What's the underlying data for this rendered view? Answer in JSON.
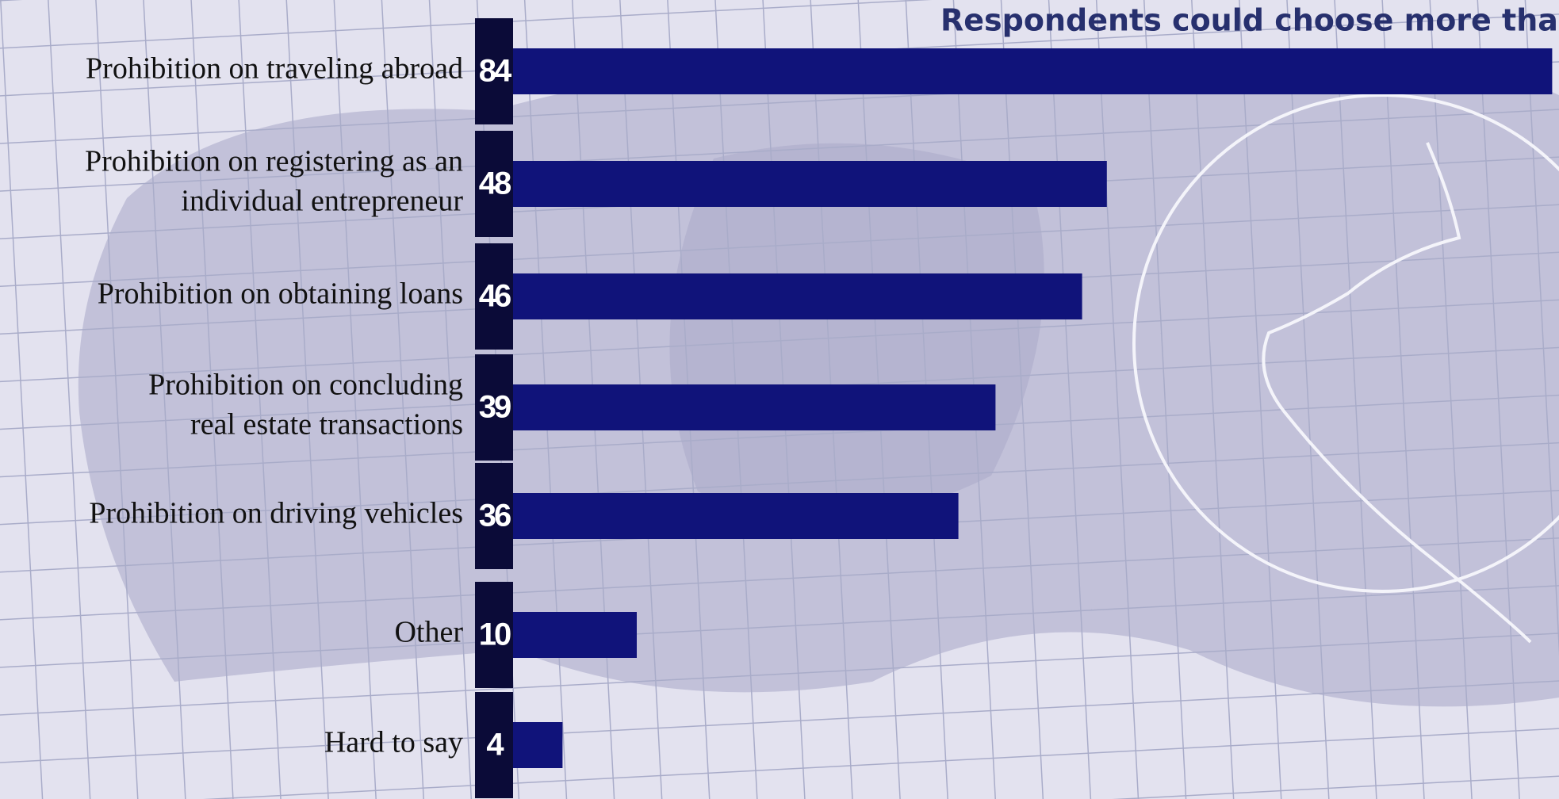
{
  "chart_data": {
    "type": "bar",
    "orientation": "horizontal",
    "title": "Respondents could choose more than on",
    "categories": [
      [
        "Prohibition on traveling abroad"
      ],
      [
        "Prohibition on registering as an",
        "individual entrepreneur"
      ],
      [
        "Prohibition on obtaining loans"
      ],
      [
        "Prohibition on concluding",
        "real estate transactions"
      ],
      [
        "Prohibition on driving vehicles"
      ],
      [
        "Other"
      ],
      [
        "Hard to say"
      ]
    ],
    "values": [
      84,
      48,
      46,
      39,
      36,
      10,
      4
    ],
    "color": "#10137a"
  }
}
